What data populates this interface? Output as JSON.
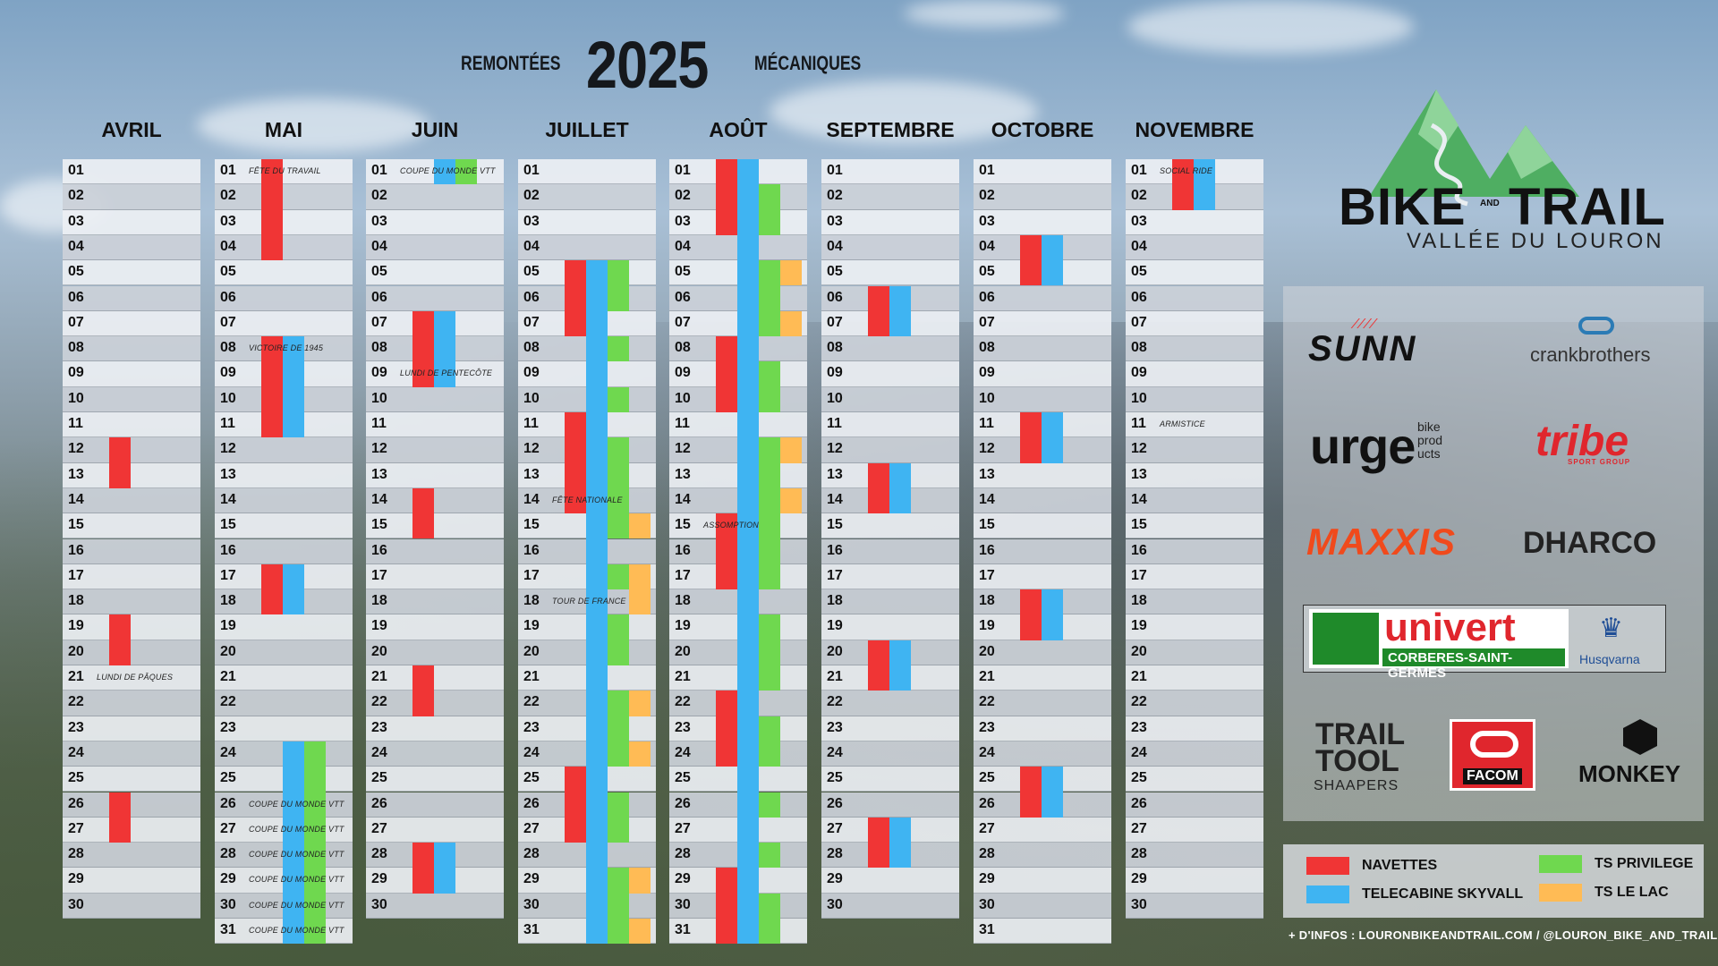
{
  "header": {
    "left": "REMONTÉES",
    "year": "2025",
    "right": "MÉCANIQUES"
  },
  "colors": {
    "navettes": "#f03535",
    "telecabine": "#3fb4f2",
    "ts_privilege": "#6fd84f",
    "ts_le_lac": "#ffbb55"
  },
  "months": [
    {
      "name": "AVRIL",
      "days": 30,
      "notes": [
        {
          "day": 21,
          "text": "LUNDI DE PÂQUES"
        }
      ],
      "bars": [
        {
          "lane": 0,
          "color": "navettes",
          "start": 12,
          "end": 13
        },
        {
          "lane": 0,
          "color": "navettes",
          "start": 19,
          "end": 20
        },
        {
          "lane": 0,
          "color": "navettes",
          "start": 26,
          "end": 27
        }
      ]
    },
    {
      "name": "MAI",
      "days": 31,
      "notes": [
        {
          "day": 1,
          "text": "FÊTE DU TRAVAIL"
        },
        {
          "day": 8,
          "text": "VICTOIRE DE 1945"
        },
        {
          "day": 26,
          "text": "COUPE DU MONDE VTT"
        },
        {
          "day": 27,
          "text": "COUPE DU MONDE VTT"
        },
        {
          "day": 28,
          "text": "COUPE DU MONDE VTT"
        },
        {
          "day": 29,
          "text": "COUPE DU MONDE VTT"
        },
        {
          "day": 30,
          "text": "COUPE DU MONDE VTT"
        },
        {
          "day": 31,
          "text": "COUPE DU MONDE VTT"
        }
      ],
      "bars": [
        {
          "lane": 0,
          "color": "navettes",
          "start": 1,
          "end": 4
        },
        {
          "lane": 0,
          "color": "navettes",
          "start": 8,
          "end": 11
        },
        {
          "lane": 1,
          "color": "telecabine",
          "start": 8,
          "end": 11
        },
        {
          "lane": 0,
          "color": "navettes",
          "start": 17,
          "end": 18
        },
        {
          "lane": 1,
          "color": "telecabine",
          "start": 17,
          "end": 18
        },
        {
          "lane": 1,
          "color": "telecabine",
          "start": 24,
          "end": 31
        },
        {
          "lane": 2,
          "color": "ts_privilege",
          "start": 24,
          "end": 31
        }
      ]
    },
    {
      "name": "JUIN",
      "days": 30,
      "notes": [
        {
          "day": 1,
          "text": "COUPE DU MONDE VTT"
        },
        {
          "day": 9,
          "text": "LUNDI DE PENTECÔTE"
        }
      ],
      "bars": [
        {
          "lane": 1,
          "color": "telecabine",
          "start": 1,
          "end": 1
        },
        {
          "lane": 2,
          "color": "ts_privilege",
          "start": 1,
          "end": 1
        },
        {
          "lane": 0,
          "color": "navettes",
          "start": 7,
          "end": 9
        },
        {
          "lane": 1,
          "color": "telecabine",
          "start": 7,
          "end": 9
        },
        {
          "lane": 0,
          "color": "navettes",
          "start": 14,
          "end": 15
        },
        {
          "lane": 0,
          "color": "navettes",
          "start": 21,
          "end": 22
        },
        {
          "lane": 0,
          "color": "navettes",
          "start": 28,
          "end": 29
        },
        {
          "lane": 1,
          "color": "telecabine",
          "start": 28,
          "end": 29
        }
      ]
    },
    {
      "name": "JUILLET",
      "days": 31,
      "notes": [
        {
          "day": 14,
          "text": "FÊTE NATIONALE"
        },
        {
          "day": 18,
          "text": "TOUR DE FRANCE"
        }
      ],
      "bars": [
        {
          "lane": 0,
          "color": "navettes",
          "start": 5,
          "end": 7
        },
        {
          "lane": 1,
          "color": "telecabine",
          "start": 5,
          "end": 31
        },
        {
          "lane": 2,
          "color": "ts_privilege",
          "start": 5,
          "end": 6
        },
        {
          "lane": 2,
          "color": "ts_privilege",
          "start": 8,
          "end": 8
        },
        {
          "lane": 2,
          "color": "ts_privilege",
          "start": 10,
          "end": 10
        },
        {
          "lane": 0,
          "color": "navettes",
          "start": 11,
          "end": 14
        },
        {
          "lane": 2,
          "color": "ts_privilege",
          "start": 12,
          "end": 15
        },
        {
          "lane": 3,
          "color": "ts_le_lac",
          "start": 15,
          "end": 15
        },
        {
          "lane": 2,
          "color": "ts_privilege",
          "start": 17,
          "end": 17
        },
        {
          "lane": 3,
          "color": "ts_le_lac",
          "start": 17,
          "end": 18
        },
        {
          "lane": 2,
          "color": "ts_privilege",
          "start": 19,
          "end": 20
        },
        {
          "lane": 2,
          "color": "ts_privilege",
          "start": 22,
          "end": 24
        },
        {
          "lane": 3,
          "color": "ts_le_lac",
          "start": 22,
          "end": 22
        },
        {
          "lane": 3,
          "color": "ts_le_lac",
          "start": 24,
          "end": 24
        },
        {
          "lane": 0,
          "color": "navettes",
          "start": 25,
          "end": 27
        },
        {
          "lane": 2,
          "color": "ts_privilege",
          "start": 26,
          "end": 27
        },
        {
          "lane": 2,
          "color": "ts_privilege",
          "start": 29,
          "end": 31
        },
        {
          "lane": 3,
          "color": "ts_le_lac",
          "start": 29,
          "end": 29
        },
        {
          "lane": 3,
          "color": "ts_le_lac",
          "start": 31,
          "end": 31
        }
      ]
    },
    {
      "name": "AOÛT",
      "days": 31,
      "notes": [
        {
          "day": 15,
          "text": "ASSOMPTION"
        }
      ],
      "bars": [
        {
          "lane": 0,
          "color": "navettes",
          "start": 1,
          "end": 3
        },
        {
          "lane": 1,
          "color": "telecabine",
          "start": 1,
          "end": 31
        },
        {
          "lane": 2,
          "color": "ts_privilege",
          "start": 2,
          "end": 3
        },
        {
          "lane": 2,
          "color": "ts_privilege",
          "start": 5,
          "end": 7
        },
        {
          "lane": 3,
          "color": "ts_le_lac",
          "start": 5,
          "end": 5
        },
        {
          "lane": 3,
          "color": "ts_le_lac",
          "start": 7,
          "end": 7
        },
        {
          "lane": 0,
          "color": "navettes",
          "start": 8,
          "end": 10
        },
        {
          "lane": 2,
          "color": "ts_privilege",
          "start": 9,
          "end": 10
        },
        {
          "lane": 2,
          "color": "ts_privilege",
          "start": 12,
          "end": 17
        },
        {
          "lane": 3,
          "color": "ts_le_lac",
          "start": 12,
          "end": 12
        },
        {
          "lane": 3,
          "color": "ts_le_lac",
          "start": 14,
          "end": 14
        },
        {
          "lane": 0,
          "color": "navettes",
          "start": 15,
          "end": 17
        },
        {
          "lane": 2,
          "color": "ts_privilege",
          "start": 19,
          "end": 21
        },
        {
          "lane": 0,
          "color": "navettes",
          "start": 22,
          "end": 24
        },
        {
          "lane": 2,
          "color": "ts_privilege",
          "start": 23,
          "end": 24
        },
        {
          "lane": 2,
          "color": "ts_privilege",
          "start": 26,
          "end": 26
        },
        {
          "lane": 2,
          "color": "ts_privilege",
          "start": 28,
          "end": 28
        },
        {
          "lane": 0,
          "color": "navettes",
          "start": 29,
          "end": 31
        },
        {
          "lane": 2,
          "color": "ts_privilege",
          "start": 30,
          "end": 31
        }
      ]
    },
    {
      "name": "SEPTEMBRE",
      "days": 30,
      "notes": [],
      "bars": [
        {
          "lane": 0,
          "color": "navettes",
          "start": 6,
          "end": 7
        },
        {
          "lane": 1,
          "color": "telecabine",
          "start": 6,
          "end": 7
        },
        {
          "lane": 0,
          "color": "navettes",
          "start": 13,
          "end": 14
        },
        {
          "lane": 1,
          "color": "telecabine",
          "start": 13,
          "end": 14
        },
        {
          "lane": 0,
          "color": "navettes",
          "start": 20,
          "end": 21
        },
        {
          "lane": 1,
          "color": "telecabine",
          "start": 20,
          "end": 21
        },
        {
          "lane": 0,
          "color": "navettes",
          "start": 27,
          "end": 28
        },
        {
          "lane": 1,
          "color": "telecabine",
          "start": 27,
          "end": 28
        }
      ]
    },
    {
      "name": "OCTOBRE",
      "days": 31,
      "notes": [],
      "bars": [
        {
          "lane": 0,
          "color": "navettes",
          "start": 4,
          "end": 5
        },
        {
          "lane": 1,
          "color": "telecabine",
          "start": 4,
          "end": 5
        },
        {
          "lane": 0,
          "color": "navettes",
          "start": 11,
          "end": 12
        },
        {
          "lane": 1,
          "color": "telecabine",
          "start": 11,
          "end": 12
        },
        {
          "lane": 0,
          "color": "navettes",
          "start": 18,
          "end": 19
        },
        {
          "lane": 1,
          "color": "telecabine",
          "start": 18,
          "end": 19
        },
        {
          "lane": 0,
          "color": "navettes",
          "start": 25,
          "end": 26
        },
        {
          "lane": 1,
          "color": "telecabine",
          "start": 25,
          "end": 26
        }
      ]
    },
    {
      "name": "NOVEMBRE",
      "days": 30,
      "notes": [
        {
          "day": 1,
          "text": "SOCIAL RIDE"
        },
        {
          "day": 11,
          "text": "ARMISTICE"
        }
      ],
      "bars": [
        {
          "lane": 0,
          "color": "navettes",
          "start": 1,
          "end": 2
        },
        {
          "lane": 1,
          "color": "telecabine",
          "start": 1,
          "end": 2
        }
      ]
    }
  ],
  "brand": {
    "name": "BIKE",
    "and": "AND",
    "trail": "TRAIL",
    "sub": "VALLÉE DU LOURON"
  },
  "sponsors": {
    "sunn": "SUNN",
    "crankbrothers": "crankbrothers",
    "urge": "urge",
    "urge_sub": "bike prod ucts",
    "tribe": "tribe",
    "tribe_sub": "SPORT GROUP",
    "maxxis": "MAXXIS",
    "dharco": "DHARCO",
    "univert": "univert",
    "univert_sub": "CORBERES-SAINT-GERMES",
    "husqvarna": "Husqvarna",
    "trailtool": "TRAIL TOOL",
    "shaapers": "SHAAPERS",
    "facom": "FACOM",
    "monkey": "MONKEY"
  },
  "legend": {
    "navettes": "NAVETTES",
    "telecabine": "TELECABINE SKYVALL",
    "ts_privilege": "TS PRIVILEGE",
    "ts_le_lac": "TS LE LAC"
  },
  "footer": "+ D'INFOS : LOURONBIKEANDTRAIL.COM / @LOURON_BIKE_AND_TRAIL"
}
